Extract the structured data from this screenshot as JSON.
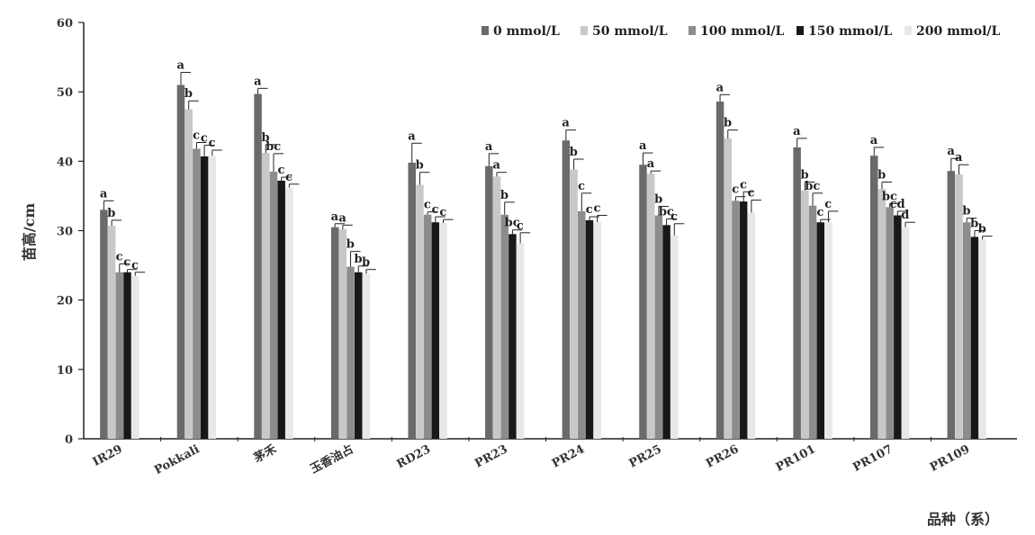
{
  "chart_data": {
    "type": "bar",
    "title": "",
    "ylabel": "苗高/cm",
    "xlabel": "品种（系）",
    "ylim": [
      0,
      60
    ],
    "yticks": [
      0,
      10,
      20,
      30,
      40,
      50,
      60
    ],
    "grid": false,
    "legend_position": "top",
    "categories": [
      "IR29",
      "Pokkali",
      "茅禾",
      "玉香油占",
      "RD23",
      "PR23",
      "PR24",
      "PR25",
      "PR26",
      "PR101",
      "PR107",
      "PR109"
    ],
    "series": [
      {
        "name": "0 mmol/L",
        "color": "#6a6a6a",
        "values": [
          33,
          51,
          49.7,
          30.5,
          39.8,
          39.3,
          43,
          39.5,
          48.6,
          42,
          40.8,
          38.6
        ],
        "errors": [
          1.3,
          1.8,
          0.8,
          0.5,
          2.8,
          1.8,
          1.5,
          1.7,
          1,
          1.3,
          1.2,
          1.8
        ],
        "letters": [
          "a",
          "a",
          "a",
          "a",
          "a",
          "a",
          "a",
          "a",
          "a",
          "a",
          "a",
          "a"
        ]
      },
      {
        "name": "50 mmol/L",
        "color": "#c8c8c8",
        "values": [
          30.7,
          47.5,
          41.2,
          30.2,
          36.6,
          37.8,
          38.8,
          38.2,
          43.3,
          35.8,
          36,
          38.1
        ],
        "errors": [
          0.8,
          1.2,
          1.2,
          0.6,
          1.8,
          0.6,
          1.5,
          0.4,
          1.2,
          1.2,
          1,
          1.4
        ],
        "letters": [
          "b",
          "b",
          "b",
          "a",
          "b",
          "a",
          "b",
          "a",
          "b",
          "b",
          "b",
          "a"
        ]
      },
      {
        "name": "100 mmol/L",
        "color": "#8c8c8c",
        "values": [
          24,
          41.8,
          38.5,
          24.8,
          32.3,
          32.3,
          32.8,
          32.2,
          34.3,
          33.6,
          33.4,
          31.2
        ],
        "errors": [
          1.2,
          0.9,
          2.6,
          2.2,
          0.4,
          1.8,
          2.6,
          1.3,
          0.6,
          1.8,
          0.5,
          0.6
        ],
        "letters": [
          "c",
          "c",
          "bc",
          "b",
          "c",
          "b",
          "c",
          "b",
          "c",
          "bc",
          "bc",
          "b"
        ]
      },
      {
        "name": "150 mmol/L",
        "color": "#181818",
        "values": [
          24,
          40.7,
          37.2,
          24,
          31.2,
          29.5,
          31.5,
          30.8,
          34.2,
          31.2,
          32.2,
          29.1
        ],
        "errors": [
          0.4,
          1.6,
          0.5,
          0.9,
          0.8,
          0.6,
          0.5,
          0.9,
          1.4,
          0.4,
          0.6,
          0.9
        ],
        "letters": [
          "c",
          "c",
          "c",
          "b",
          "c",
          "bc",
          "c",
          "bc",
          "c",
          "c",
          "cd",
          "b"
        ]
      },
      {
        "name": "200 mmol/L",
        "color": "#e8e8e8",
        "values": [
          23.5,
          40.8,
          36.2,
          23.8,
          31.1,
          28.2,
          31.2,
          29.3,
          32.6,
          31.2,
          30.5,
          28.7
        ],
        "errors": [
          0.5,
          0.8,
          0.5,
          0.6,
          0.5,
          1.5,
          1,
          1.7,
          1.8,
          1.6,
          0.7,
          0.5
        ],
        "letters": [
          "c",
          "c",
          "c",
          "b",
          "c",
          "c",
          "c",
          "c",
          "c",
          "c",
          "d",
          "b"
        ]
      }
    ]
  }
}
